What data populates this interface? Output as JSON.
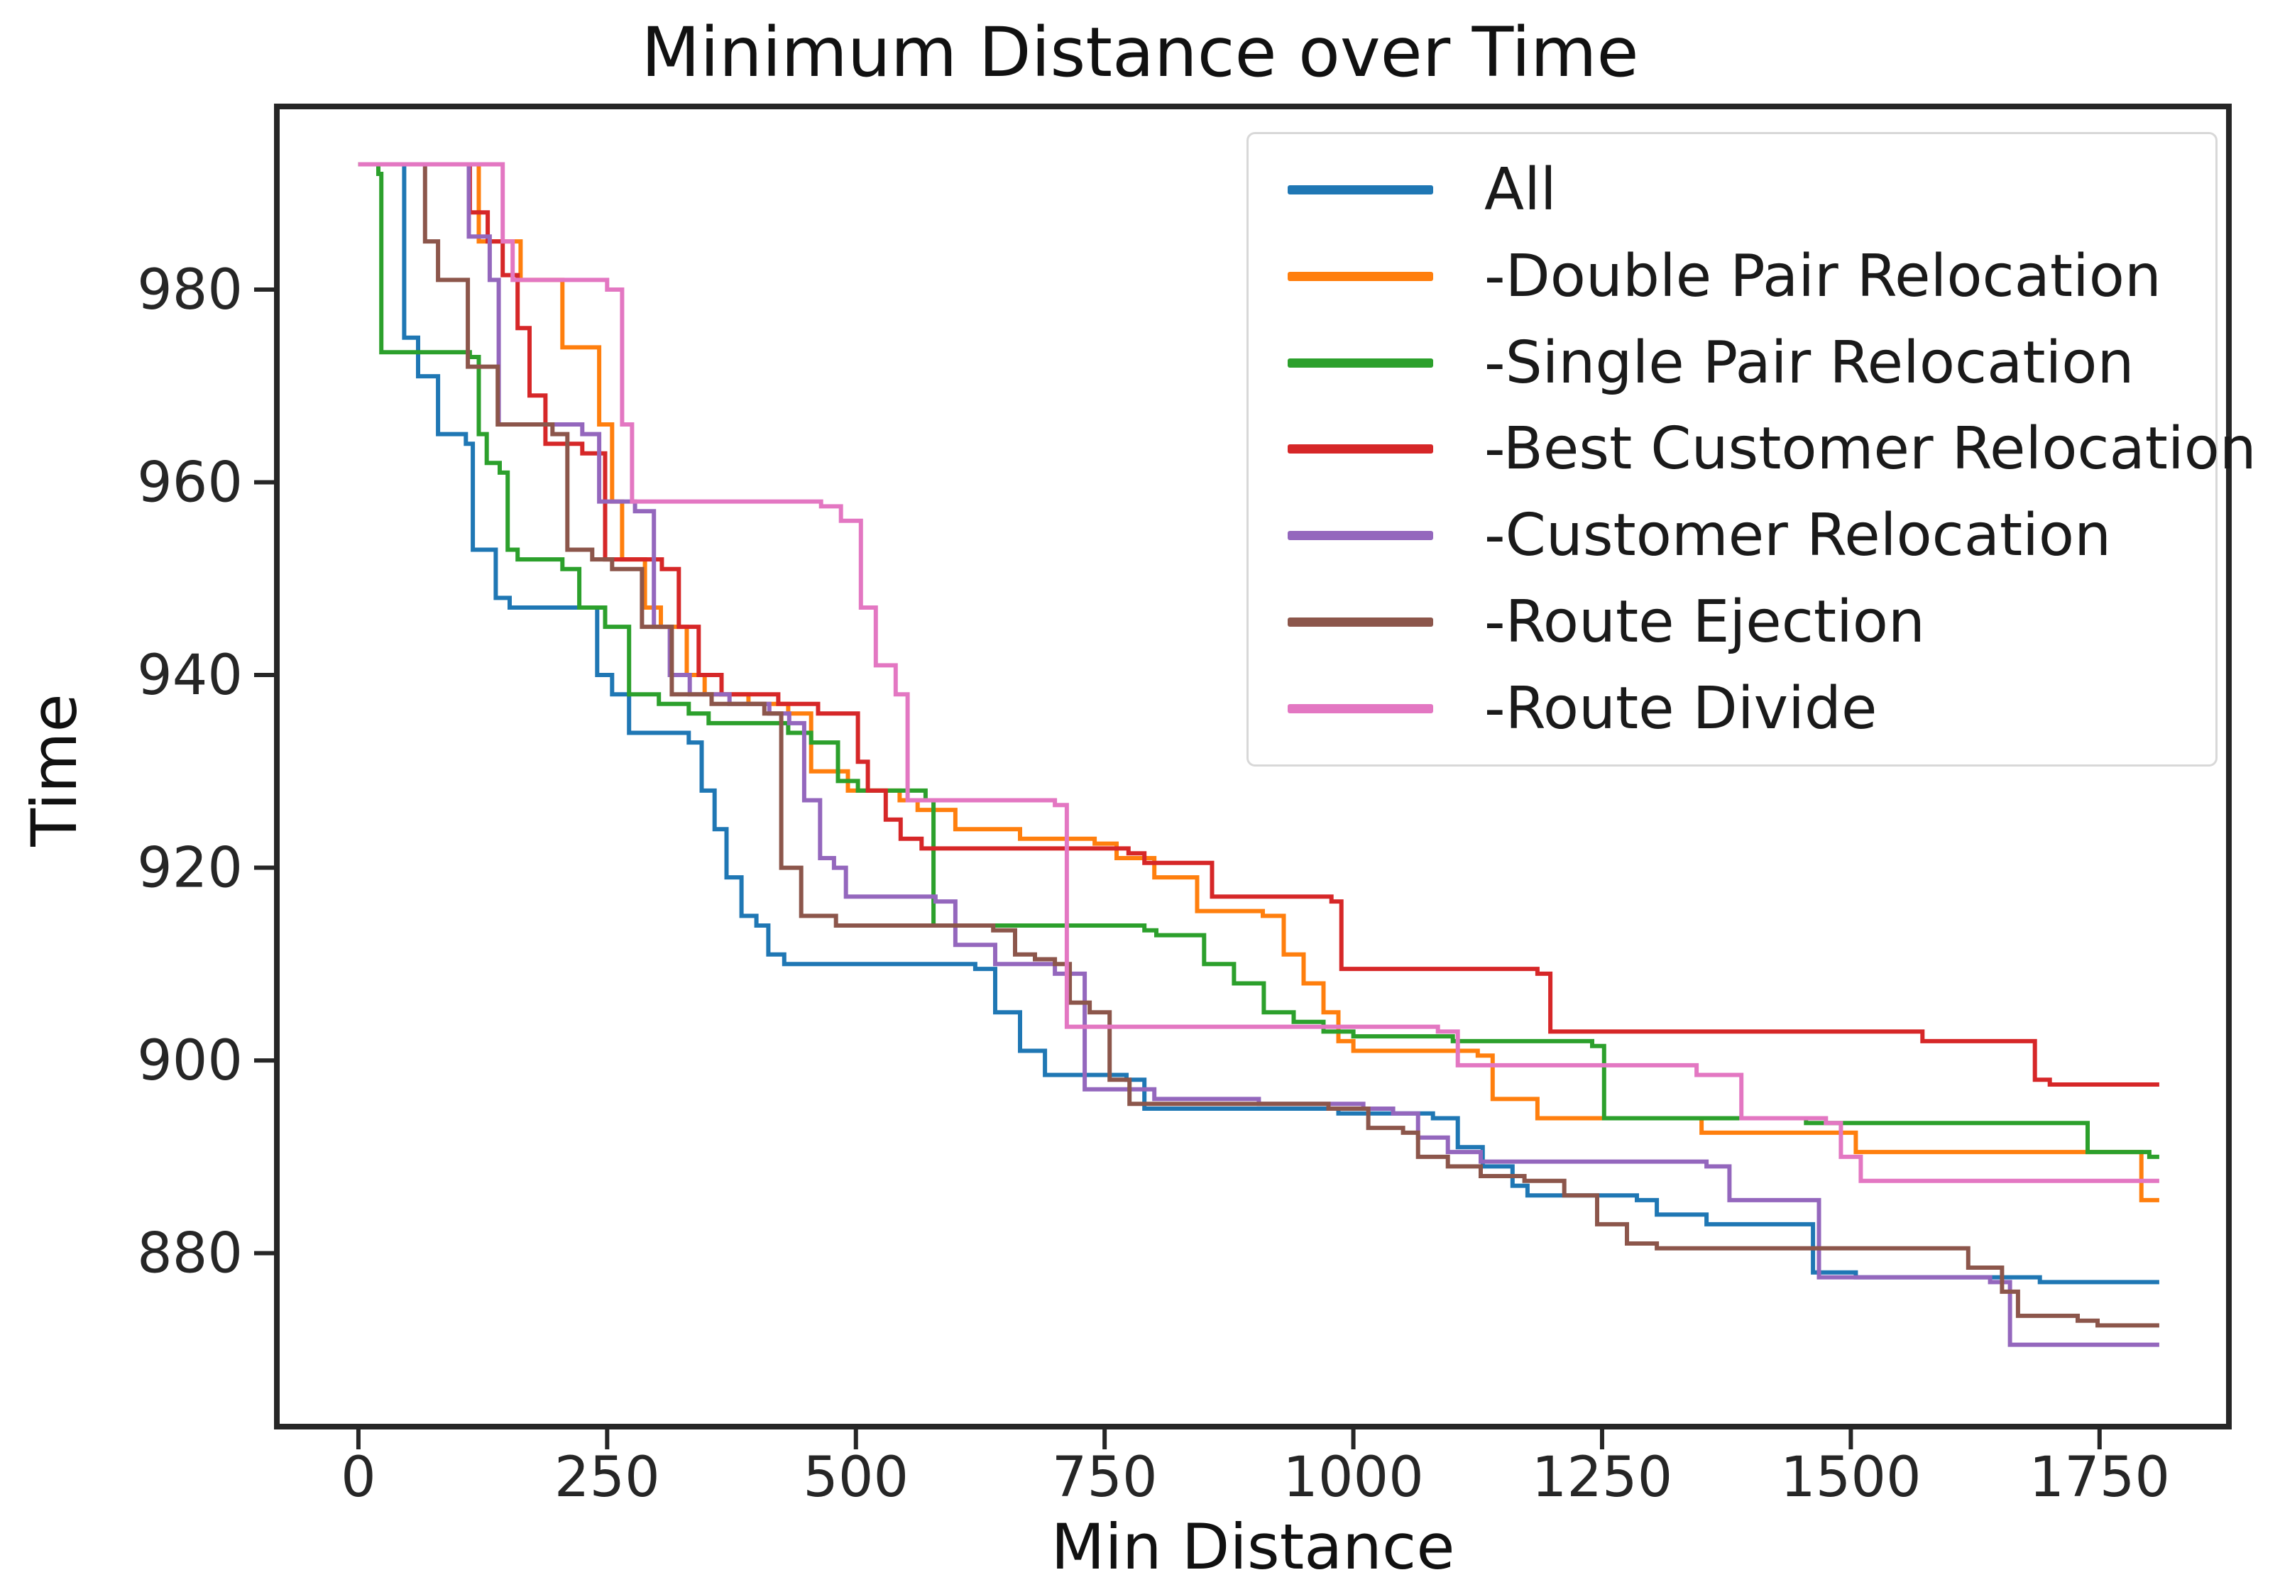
{
  "title": "Minimum Distance over Time",
  "chart_data": {
    "type": "line",
    "step": "post",
    "title": "Minimum Distance over Time",
    "xlabel": "Min Distance",
    "ylabel": "Time",
    "xlim": [
      -82,
      1880
    ],
    "ylim": [
      862,
      999
    ],
    "xticks": [
      0,
      250,
      500,
      750,
      1000,
      1250,
      1500,
      1750
    ],
    "yticks": [
      880,
      900,
      920,
      940,
      960,
      980
    ],
    "grid": false,
    "legend_position": "upper right",
    "axis_color": "#262626",
    "series": [
      {
        "name": "All",
        "color": "#1f77b4",
        "points": [
          [
            0,
            993
          ],
          [
            43,
            993
          ],
          [
            46,
            975
          ],
          [
            60,
            971
          ],
          [
            80,
            965
          ],
          [
            108,
            964
          ],
          [
            115,
            953
          ],
          [
            138,
            948
          ],
          [
            152,
            947
          ],
          [
            228,
            947
          ],
          [
            240,
            940
          ],
          [
            255,
            938
          ],
          [
            272,
            934
          ],
          [
            332,
            933
          ],
          [
            345,
            928
          ],
          [
            358,
            924
          ],
          [
            370,
            919
          ],
          [
            385,
            915
          ],
          [
            400,
            914
          ],
          [
            412,
            911
          ],
          [
            428,
            910
          ],
          [
            620,
            909.5
          ],
          [
            640,
            905
          ],
          [
            665,
            901
          ],
          [
            690,
            898.5
          ],
          [
            772,
            898
          ],
          [
            790,
            895
          ],
          [
            985,
            894.5
          ],
          [
            1080,
            894
          ],
          [
            1105,
            891
          ],
          [
            1130,
            889
          ],
          [
            1160,
            887
          ],
          [
            1175,
            886
          ],
          [
            1285,
            885.5
          ],
          [
            1305,
            884
          ],
          [
            1355,
            883
          ],
          [
            1448,
            883
          ],
          [
            1462,
            878
          ],
          [
            1505,
            877.5
          ],
          [
            1690,
            877
          ],
          [
            1810,
            877
          ]
        ]
      },
      {
        "name": "-Double Pair Relocation",
        "color": "#ff7f0e",
        "points": [
          [
            0,
            993
          ],
          [
            115,
            993
          ],
          [
            121,
            985
          ],
          [
            163,
            981
          ],
          [
            205,
            974
          ],
          [
            242,
            966
          ],
          [
            255,
            958
          ],
          [
            265,
            952
          ],
          [
            288,
            947
          ],
          [
            304,
            945
          ],
          [
            330,
            940
          ],
          [
            348,
            938
          ],
          [
            392,
            937
          ],
          [
            432,
            936
          ],
          [
            455,
            930
          ],
          [
            492,
            928
          ],
          [
            544,
            927
          ],
          [
            562,
            926
          ],
          [
            600,
            924
          ],
          [
            665,
            923
          ],
          [
            740,
            922.5
          ],
          [
            762,
            921
          ],
          [
            800,
            919
          ],
          [
            843,
            915.5
          ],
          [
            909,
            915
          ],
          [
            930,
            911
          ],
          [
            950,
            908
          ],
          [
            970,
            905
          ],
          [
            985,
            902
          ],
          [
            1000,
            901
          ],
          [
            1125,
            900.5
          ],
          [
            1140,
            896
          ],
          [
            1185,
            894
          ],
          [
            1350,
            892.5
          ],
          [
            1505,
            890.5
          ],
          [
            1778,
            890.5
          ],
          [
            1792,
            885.5
          ],
          [
            1810,
            885.5
          ]
        ]
      },
      {
        "name": "-Single Pair Relocation",
        "color": "#2ca02c",
        "points": [
          [
            0,
            993
          ],
          [
            20,
            992
          ],
          [
            23,
            973.5
          ],
          [
            112,
            973
          ],
          [
            121,
            965
          ],
          [
            129,
            962
          ],
          [
            142,
            961
          ],
          [
            150,
            953
          ],
          [
            160,
            952
          ],
          [
            205,
            951
          ],
          [
            222,
            947
          ],
          [
            248,
            945
          ],
          [
            272,
            938
          ],
          [
            302,
            937
          ],
          [
            332,
            936
          ],
          [
            352,
            935
          ],
          [
            432,
            934
          ],
          [
            455,
            933
          ],
          [
            482,
            929
          ],
          [
            502,
            928
          ],
          [
            570,
            927
          ],
          [
            578,
            914
          ],
          [
            790,
            913.5
          ],
          [
            802,
            913
          ],
          [
            850,
            910
          ],
          [
            880,
            908
          ],
          [
            910,
            905
          ],
          [
            940,
            904
          ],
          [
            970,
            903
          ],
          [
            1000,
            902.5
          ],
          [
            1100,
            902
          ],
          [
            1240,
            901.5
          ],
          [
            1252,
            894
          ],
          [
            1455,
            893.5
          ],
          [
            1560,
            893.5
          ],
          [
            1738,
            890.5
          ],
          [
            1800,
            890
          ],
          [
            1810,
            890
          ]
        ]
      },
      {
        "name": "-Best Customer Relocation",
        "color": "#d62728",
        "points": [
          [
            0,
            993
          ],
          [
            108,
            993
          ],
          [
            112,
            988
          ],
          [
            130,
            985
          ],
          [
            145,
            981.5
          ],
          [
            160,
            976
          ],
          [
            172,
            969
          ],
          [
            188,
            964
          ],
          [
            225,
            963
          ],
          [
            248,
            952
          ],
          [
            305,
            951
          ],
          [
            322,
            945
          ],
          [
            342,
            940
          ],
          [
            365,
            938
          ],
          [
            422,
            937
          ],
          [
            462,
            936
          ],
          [
            502,
            931
          ],
          [
            512,
            928
          ],
          [
            530,
            925
          ],
          [
            545,
            923
          ],
          [
            566,
            922
          ],
          [
            774,
            921.5
          ],
          [
            790,
            920.5
          ],
          [
            858,
            917
          ],
          [
            978,
            916.5
          ],
          [
            988,
            909.5
          ],
          [
            1185,
            909
          ],
          [
            1198,
            903
          ],
          [
            1550,
            903
          ],
          [
            1572,
            902
          ],
          [
            1685,
            898
          ],
          [
            1700,
            897.5
          ],
          [
            1810,
            897.5
          ]
        ]
      },
      {
        "name": "-Customer Relocation",
        "color": "#9467bd",
        "points": [
          [
            0,
            993
          ],
          [
            108,
            993
          ],
          [
            111,
            985.5
          ],
          [
            132,
            981
          ],
          [
            141,
            966
          ],
          [
            225,
            965
          ],
          [
            242,
            958
          ],
          [
            278,
            957
          ],
          [
            297,
            945
          ],
          [
            313,
            940
          ],
          [
            333,
            938
          ],
          [
            373,
            937
          ],
          [
            413,
            936
          ],
          [
            433,
            935
          ],
          [
            448,
            927
          ],
          [
            464,
            921
          ],
          [
            478,
            920
          ],
          [
            490,
            917
          ],
          [
            580,
            916.5
          ],
          [
            600,
            912
          ],
          [
            640,
            910
          ],
          [
            700,
            909
          ],
          [
            730,
            897
          ],
          [
            800,
            896
          ],
          [
            905,
            895.5
          ],
          [
            1010,
            895
          ],
          [
            1040,
            894.5
          ],
          [
            1065,
            892
          ],
          [
            1095,
            890.5
          ],
          [
            1128,
            889.5
          ],
          [
            1355,
            889
          ],
          [
            1378,
            885.5
          ],
          [
            1452,
            885.5
          ],
          [
            1468,
            877.5
          ],
          [
            1640,
            877
          ],
          [
            1660,
            870.5
          ],
          [
            1810,
            870.5
          ]
        ]
      },
      {
        "name": "-Route Ejection",
        "color": "#8c564b",
        "points": [
          [
            0,
            993
          ],
          [
            55,
            993
          ],
          [
            67,
            985
          ],
          [
            80,
            981
          ],
          [
            110,
            972
          ],
          [
            140,
            966
          ],
          [
            195,
            965
          ],
          [
            210,
            953
          ],
          [
            235,
            952
          ],
          [
            255,
            951
          ],
          [
            285,
            945
          ],
          [
            315,
            938
          ],
          [
            355,
            937
          ],
          [
            408,
            936
          ],
          [
            425,
            920
          ],
          [
            445,
            915
          ],
          [
            480,
            914
          ],
          [
            638,
            913.5
          ],
          [
            660,
            911
          ],
          [
            680,
            910.5
          ],
          [
            700,
            910
          ],
          [
            715,
            906
          ],
          [
            735,
            905
          ],
          [
            755,
            898
          ],
          [
            775,
            895.5
          ],
          [
            975,
            895
          ],
          [
            1015,
            893
          ],
          [
            1050,
            892.5
          ],
          [
            1065,
            890
          ],
          [
            1095,
            889
          ],
          [
            1128,
            888
          ],
          [
            1172,
            887.5
          ],
          [
            1212,
            886
          ],
          [
            1245,
            883
          ],
          [
            1275,
            881
          ],
          [
            1305,
            880.5
          ],
          [
            1600,
            880.5
          ],
          [
            1618,
            878.5
          ],
          [
            1652,
            876
          ],
          [
            1668,
            873.5
          ],
          [
            1728,
            873
          ],
          [
            1748,
            872.5
          ],
          [
            1810,
            872.5
          ]
        ]
      },
      {
        "name": "-Route Divide",
        "color": "#e377c2",
        "points": [
          [
            0,
            993
          ],
          [
            135,
            993
          ],
          [
            145,
            985
          ],
          [
            155,
            981
          ],
          [
            250,
            980
          ],
          [
            265,
            966
          ],
          [
            275,
            958
          ],
          [
            465,
            957.5
          ],
          [
            485,
            956
          ],
          [
            505,
            947
          ],
          [
            520,
            941
          ],
          [
            540,
            938
          ],
          [
            552,
            927
          ],
          [
            700,
            926.5
          ],
          [
            712,
            903.5
          ],
          [
            1085,
            903
          ],
          [
            1105,
            899.5
          ],
          [
            1345,
            898.5
          ],
          [
            1390,
            894
          ],
          [
            1475,
            893.5
          ],
          [
            1490,
            890
          ],
          [
            1510,
            887.5
          ],
          [
            1810,
            887.5
          ]
        ]
      }
    ]
  }
}
